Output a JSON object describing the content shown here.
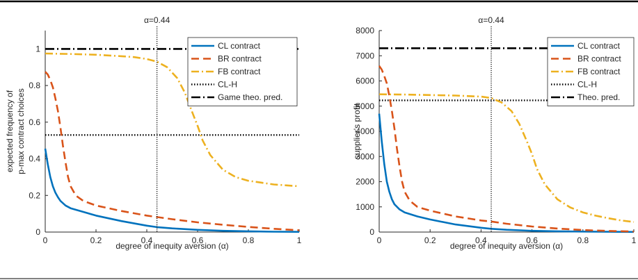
{
  "chart_data": [
    {
      "type": "line",
      "xlabel": "degree of inequity aversion (α)",
      "ylabel": [
        "expected frequency of",
        "p-max contract choices"
      ],
      "xlim": [
        0,
        1
      ],
      "ylim": [
        0,
        1.1
      ],
      "xticks": [
        "0",
        "0.2",
        "0.4",
        "0.6",
        "0.8",
        "1"
      ],
      "yticks": [
        "0",
        "0.2",
        "0.4",
        "0.6",
        "0.8",
        "1"
      ],
      "legend_position": "top-right",
      "annotation": {
        "x": 0.44,
        "text": "α=0.44"
      },
      "series": [
        {
          "name": "CL contract",
          "color": "#0072BD",
          "style": "solid",
          "x": [
            0,
            0.01,
            0.02,
            0.03,
            0.04,
            0.05,
            0.06,
            0.08,
            0.1,
            0.15,
            0.2,
            0.3,
            0.4,
            0.44,
            0.5,
            0.6,
            0.7,
            0.8,
            0.9,
            1.0
          ],
          "y": [
            0.455,
            0.37,
            0.3,
            0.25,
            0.215,
            0.19,
            0.17,
            0.145,
            0.13,
            0.11,
            0.09,
            0.06,
            0.035,
            0.027,
            0.02,
            0.012,
            0.007,
            0.004,
            0.002,
            0.001
          ]
        },
        {
          "name": "BR contract",
          "color": "#D95319",
          "style": "dashed",
          "x": [
            0,
            0.01,
            0.02,
            0.03,
            0.04,
            0.05,
            0.06,
            0.07,
            0.08,
            0.09,
            0.1,
            0.12,
            0.15,
            0.2,
            0.3,
            0.4,
            0.44,
            0.5,
            0.6,
            0.7,
            0.8,
            0.9,
            1.0
          ],
          "y": [
            0.875,
            0.86,
            0.83,
            0.79,
            0.73,
            0.66,
            0.57,
            0.47,
            0.38,
            0.3,
            0.25,
            0.2,
            0.17,
            0.145,
            0.115,
            0.09,
            0.082,
            0.07,
            0.053,
            0.04,
            0.028,
            0.018,
            0.01
          ]
        },
        {
          "name": "FB contract",
          "color": "#EDB120",
          "style": "dash-dot",
          "x": [
            0,
            0.1,
            0.2,
            0.3,
            0.35,
            0.4,
            0.44,
            0.48,
            0.52,
            0.55,
            0.58,
            0.6,
            0.62,
            0.65,
            0.7,
            0.75,
            0.8,
            0.85,
            0.9,
            0.95,
            1.0
          ],
          "y": [
            0.975,
            0.972,
            0.968,
            0.96,
            0.955,
            0.945,
            0.93,
            0.9,
            0.84,
            0.76,
            0.65,
            0.58,
            0.5,
            0.42,
            0.34,
            0.3,
            0.28,
            0.27,
            0.26,
            0.255,
            0.25
          ]
        },
        {
          "name": "CL-H",
          "color": "#000000",
          "style": "dotted",
          "x": [
            0,
            1
          ],
          "y": [
            0.53,
            0.53
          ]
        },
        {
          "name": "Game theo. pred.",
          "color": "#000000",
          "style": "long-dash-dot",
          "x": [
            0,
            1
          ],
          "y": [
            1.0,
            1.0
          ]
        }
      ]
    },
    {
      "type": "line",
      "xlabel": "degree of inequity aversion (α)",
      "ylabel": [
        "supplier's profit"
      ],
      "xlim": [
        0,
        1
      ],
      "ylim": [
        0,
        8000
      ],
      "xticks": [
        "0",
        "0.2",
        "0.4",
        "0.6",
        "0.8",
        "1"
      ],
      "yticks": [
        "0",
        "1000",
        "2000",
        "3000",
        "4000",
        "5000",
        "6000",
        "7000",
        "8000"
      ],
      "legend_position": "top-right",
      "annotation": {
        "x": 0.44,
        "text": "α=0.44"
      },
      "series": [
        {
          "name": "CL contract",
          "color": "#0072BD",
          "style": "solid",
          "x": [
            0,
            0.01,
            0.02,
            0.03,
            0.04,
            0.05,
            0.06,
            0.08,
            0.1,
            0.15,
            0.2,
            0.3,
            0.4,
            0.44,
            0.5,
            0.6,
            0.7,
            0.8,
            0.9,
            1.0
          ],
          "y": [
            4700,
            3600,
            2700,
            2000,
            1600,
            1300,
            1100,
            900,
            780,
            620,
            500,
            300,
            170,
            130,
            90,
            50,
            30,
            18,
            10,
            5
          ]
        },
        {
          "name": "BR contract",
          "color": "#D95319",
          "style": "dashed",
          "x": [
            0,
            0.01,
            0.02,
            0.03,
            0.04,
            0.05,
            0.06,
            0.07,
            0.08,
            0.09,
            0.1,
            0.12,
            0.15,
            0.2,
            0.3,
            0.4,
            0.44,
            0.5,
            0.6,
            0.7,
            0.8,
            0.9,
            1.0
          ],
          "y": [
            6600,
            6450,
            6200,
            5900,
            5400,
            4800,
            4100,
            3300,
            2600,
            2000,
            1600,
            1250,
            1000,
            850,
            620,
            460,
            420,
            330,
            220,
            140,
            80,
            45,
            20
          ]
        },
        {
          "name": "FB contract",
          "color": "#EDB120",
          "style": "dash-dot",
          "x": [
            0,
            0.1,
            0.2,
            0.3,
            0.35,
            0.4,
            0.44,
            0.48,
            0.52,
            0.55,
            0.58,
            0.6,
            0.62,
            0.65,
            0.7,
            0.75,
            0.8,
            0.85,
            0.9,
            0.95,
            1.0
          ],
          "y": [
            5470,
            5460,
            5440,
            5420,
            5400,
            5380,
            5320,
            5150,
            4800,
            4300,
            3600,
            3100,
            2500,
            1900,
            1300,
            980,
            780,
            650,
            550,
            460,
            400
          ]
        },
        {
          "name": "CL-H",
          "color": "#000000",
          "style": "dotted",
          "x": [
            0,
            1
          ],
          "y": [
            5230,
            5230
          ]
        },
        {
          "name": "Theo. pred.",
          "color": "#000000",
          "style": "long-dash-dot",
          "x": [
            0,
            1
          ],
          "y": [
            7300,
            7300
          ]
        }
      ]
    }
  ]
}
